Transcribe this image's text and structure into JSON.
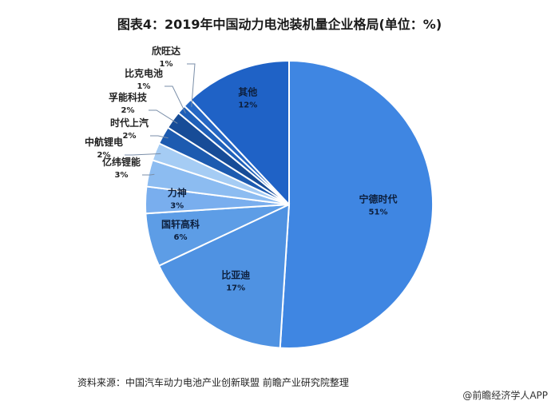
{
  "title": "图表4：2019年中国动力电池装机量企业格局(单位：%)",
  "source": "资料来源：中国汽车动力电池产业创新联盟  前瞻产业研究院整理",
  "credit": "@前瞻经济学人APP",
  "watermark": "前瞻产业研究院",
  "chart_data": {
    "type": "pie",
    "title": "图表4：2019年中国动力电池装机量企业格局(单位：%)",
    "unit": "%",
    "slices": [
      {
        "label": "宁德时代",
        "value": 51,
        "color": "#3f86e2"
      },
      {
        "label": "比亚迪",
        "value": 17,
        "color": "#4f92e2"
      },
      {
        "label": "国轩高科",
        "value": 6,
        "color": "#5d9de6"
      },
      {
        "label": "力神",
        "value": 3,
        "color": "#79aeee"
      },
      {
        "label": "亿纬锂能",
        "value": 3,
        "color": "#8cbcf1"
      },
      {
        "label": "中航锂电",
        "value": 2,
        "color": "#a5ccf4"
      },
      {
        "label": "时代上汽",
        "value": 2,
        "color": "#1d5bb0"
      },
      {
        "label": "孚能科技",
        "value": 2,
        "color": "#174c97"
      },
      {
        "label": "比克电池",
        "value": 1,
        "color": "#1e5fb8"
      },
      {
        "label": "欣旺达",
        "value": 1,
        "color": "#2567c4"
      },
      {
        "label": "其他",
        "value": 12,
        "color": "#1f62c6"
      }
    ],
    "legend": "none"
  }
}
